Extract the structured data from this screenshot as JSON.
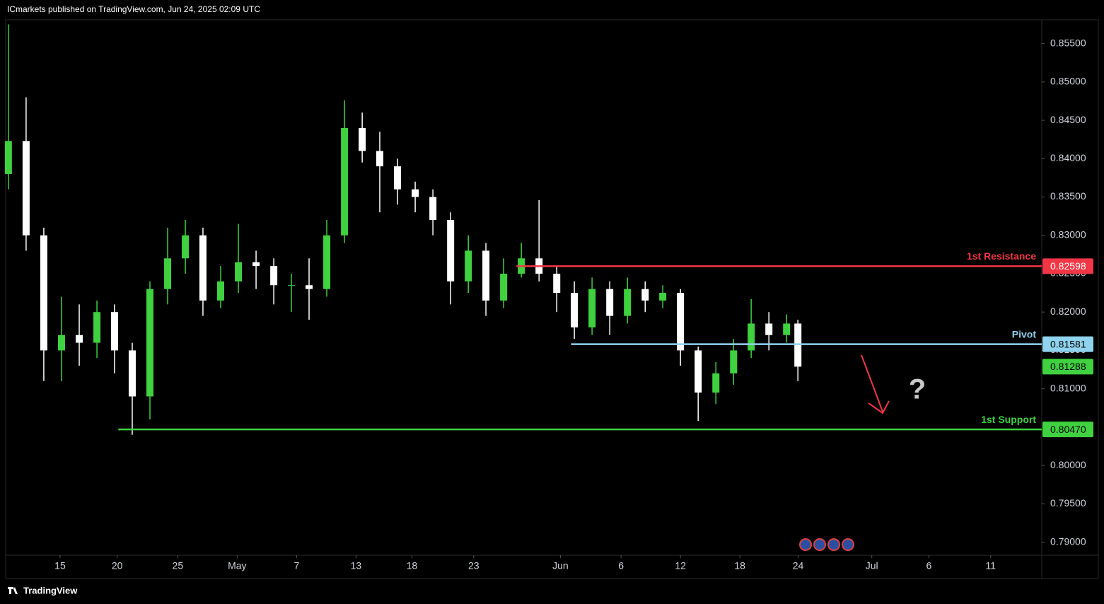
{
  "chart_data": {
    "type": "candlestick",
    "title": "ICmarkets published on TradingView.com, Jun 24, 2025 02:09 UTC",
    "brand": "TradingView",
    "annotation": "?",
    "up_color": "#3fd13f",
    "down_color": "#ffffff",
    "x": [
      -4.35,
      -2.86,
      -1.37,
      0.12,
      1.61,
      3.1,
      4.58,
      6.07,
      7.56,
      9.05,
      10.54,
      12.02,
      13.51,
      15,
      16.49,
      17.98,
      19.46,
      20.95,
      22.44,
      23.93,
      25.42,
      26.9,
      28.39,
      29.88,
      31.37,
      32.86,
      34.35,
      35.83,
      37.32,
      38.81,
      40.3,
      41.79,
      43.27,
      44.76,
      46.25,
      47.74,
      49.23,
      50.71,
      52.2,
      53.69,
      55.18,
      56.67,
      58.15,
      59.64,
      61.13,
      62.08
    ],
    "open": [
      0.838,
      0.8423,
      0.83,
      0.815,
      0.817,
      0.816,
      0.82,
      0.815,
      0.809,
      0.823,
      0.827,
      0.83,
      0.8215,
      0.824,
      0.8265,
      0.826,
      0.8235,
      0.8235,
      0.823,
      0.83,
      0.844,
      0.841,
      0.839,
      0.836,
      0.835,
      0.832,
      0.824,
      0.828,
      0.8215,
      0.825,
      0.827,
      0.825,
      0.8225,
      0.818,
      0.823,
      0.8195,
      0.823,
      0.8215,
      0.8225,
      0.815,
      0.8095,
      0.812,
      0.815,
      0.8185,
      0.817,
      0.8185
    ],
    "high": [
      0.8575,
      0.848,
      0.831,
      0.822,
      0.821,
      0.8215,
      0.821,
      0.816,
      0.824,
      0.831,
      0.832,
      0.831,
      0.826,
      0.8315,
      0.828,
      0.827,
      0.825,
      0.827,
      0.832,
      0.8476,
      0.846,
      0.8435,
      0.84,
      0.837,
      0.836,
      0.833,
      0.83,
      0.829,
      0.827,
      0.829,
      0.8346,
      0.826,
      0.824,
      0.8245,
      0.824,
      0.8245,
      0.824,
      0.8235,
      0.823,
      0.8155,
      0.8135,
      0.8165,
      0.8217,
      0.82,
      0.8197,
      0.819
    ],
    "low": [
      0.836,
      0.828,
      0.811,
      0.811,
      0.813,
      0.814,
      0.812,
      0.804,
      0.806,
      0.821,
      0.825,
      0.8195,
      0.8205,
      0.8225,
      0.823,
      0.821,
      0.82,
      0.819,
      0.822,
      0.829,
      0.8395,
      0.833,
      0.834,
      0.833,
      0.83,
      0.821,
      0.8225,
      0.8195,
      0.8205,
      0.8245,
      0.824,
      0.82,
      0.8165,
      0.817,
      0.817,
      0.8185,
      0.82,
      0.8205,
      0.813,
      0.8058,
      0.808,
      0.8105,
      0.814,
      0.815,
      0.816,
      0.811
    ],
    "close": [
      0.8423,
      0.83,
      0.815,
      0.817,
      0.816,
      0.82,
      0.815,
      0.809,
      0.823,
      0.827,
      0.83,
      0.8215,
      0.824,
      0.8265,
      0.826,
      0.8235,
      0.8235,
      0.823,
      0.83,
      0.844,
      0.841,
      0.839,
      0.836,
      0.835,
      0.832,
      0.824,
      0.828,
      0.8215,
      0.825,
      0.827,
      0.825,
      0.8225,
      0.818,
      0.823,
      0.8195,
      0.823,
      0.8215,
      0.8225,
      0.815,
      0.8095,
      0.812,
      0.815,
      0.8185,
      0.817,
      0.8185,
      0.81288
    ],
    "levels": [
      {
        "name": "1st Resistance",
        "value": 0.82598,
        "color": "#f23645",
        "text_color": "#ffffff",
        "start_x": 38.4
      },
      {
        "name": "Pivot",
        "value": 0.81581,
        "color": "#8fd3ee",
        "text_color": "#000000",
        "start_x": 43.0
      },
      {
        "name": "1st Support",
        "value": 0.8047,
        "label": "0.80470",
        "color": "#3fd13f",
        "text_color": "#000000",
        "start_x": 4.9
      }
    ],
    "xlim": [
      -4.58,
      82.6
    ],
    "ylim": [
      0.7883,
      0.8581
    ],
    "xticks": [
      {
        "value": 0,
        "label": "15"
      },
      {
        "value": 4.8,
        "label": "20"
      },
      {
        "value": 9.9,
        "label": "25"
      },
      {
        "value": 14.9,
        "label": "May"
      },
      {
        "value": 19.9,
        "label": "7"
      },
      {
        "value": 24.9,
        "label": "13"
      },
      {
        "value": 29.6,
        "label": "18"
      },
      {
        "value": 34.8,
        "label": "23"
      },
      {
        "value": 42.1,
        "label": "Jun"
      },
      {
        "value": 47.2,
        "label": "6"
      },
      {
        "value": 52.2,
        "label": "12"
      },
      {
        "value": 57.2,
        "label": "18"
      },
      {
        "value": 62.1,
        "label": "24"
      },
      {
        "value": 68.3,
        "label": "Jul"
      },
      {
        "value": 73.1,
        "label": "6"
      },
      {
        "value": 78.3,
        "label": "11"
      }
    ],
    "yticks": [
      {
        "value": 0.855,
        "label": "0.85500"
      },
      {
        "value": 0.85,
        "label": "0.85000"
      },
      {
        "value": 0.845,
        "label": "0.84500"
      },
      {
        "value": 0.84,
        "label": "0.84000"
      },
      {
        "value": 0.835,
        "label": "0.83500"
      },
      {
        "value": 0.83,
        "label": "0.83000"
      },
      {
        "value": 0.825,
        "label": "0.82500"
      },
      {
        "value": 0.82,
        "label": "0.82000"
      },
      {
        "value": 0.815,
        "label": "0.81500"
      },
      {
        "value": 0.81,
        "label": "0.81000"
      },
      {
        "value": 0.8,
        "label": "0.80000"
      },
      {
        "value": 0.795,
        "label": "0.79500"
      },
      {
        "value": 0.79,
        "label": "0.79000"
      }
    ],
    "grid": false
  }
}
